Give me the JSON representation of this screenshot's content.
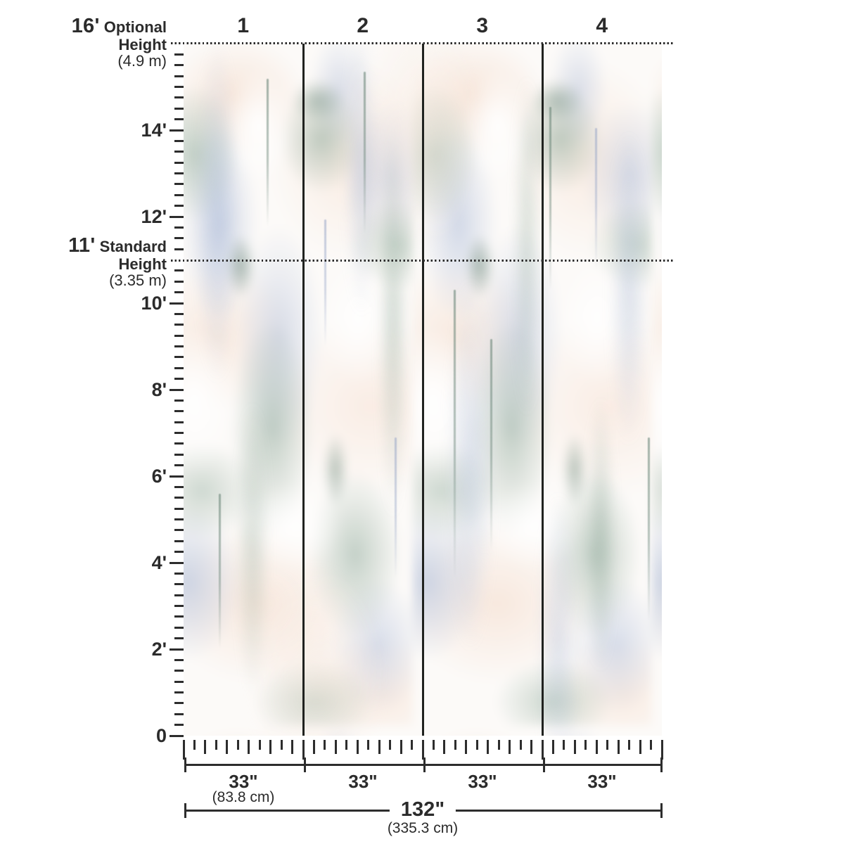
{
  "panels": {
    "numbers": [
      "1",
      "2",
      "3",
      "4"
    ]
  },
  "vertical_ruler": {
    "max_feet": 16,
    "tick_interval_feet": 0.25,
    "optional_height": {
      "value": "16'",
      "name": "Optional",
      "name2": "Height",
      "metric": "(4.9 m)",
      "feet": 16
    },
    "standard_height": {
      "value": "11'",
      "name": "Standard",
      "name2": "Height",
      "metric": "(3.35 m)",
      "feet": 11
    },
    "foot_labels": [
      {
        "feet": 14,
        "label": "14'"
      },
      {
        "feet": 12,
        "label": "12'"
      },
      {
        "feet": 10,
        "label": "10'"
      },
      {
        "feet": 8,
        "label": "8'"
      },
      {
        "feet": 6,
        "label": "6'"
      },
      {
        "feet": 4,
        "label": "4'"
      },
      {
        "feet": 2,
        "label": "2'"
      },
      {
        "feet": 0,
        "label": "0"
      }
    ]
  },
  "horizontal_ruler": {
    "panel_count": 4,
    "panel_width_inches": 33,
    "tick_interval_inches": 3,
    "total_width_inches": 132,
    "panel_width_labels": [
      "33\"",
      "33\"",
      "33\"",
      "33\""
    ],
    "panel_width_metric": "(83.8 cm)",
    "total_width_label": "132\"",
    "total_width_metric": "(335.3 cm)"
  },
  "colors": {
    "ink": "#2b2b2b",
    "panel_line": "#20221f",
    "sage": "#9ab2a3",
    "blue": "#b0bed9",
    "blush": "#f6e7dc"
  }
}
